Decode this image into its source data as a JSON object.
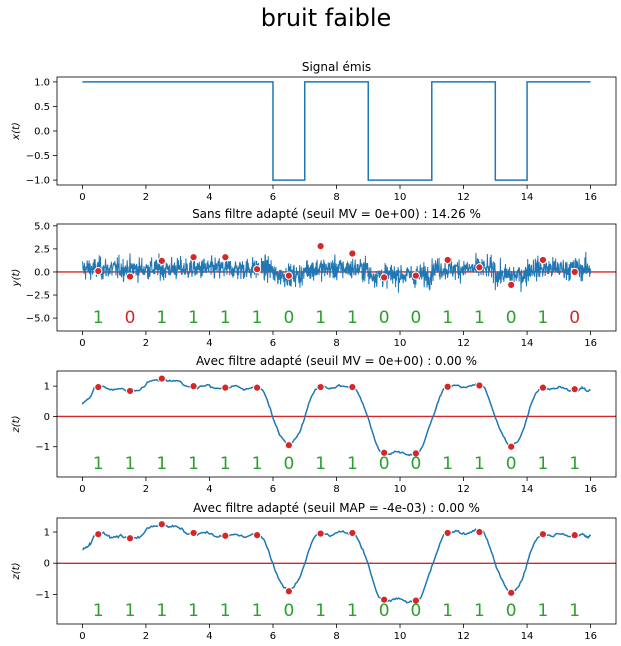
{
  "suptitle": "bruit faible",
  "colors": {
    "signal": "#1f77b4",
    "threshold": "#d62728",
    "sample_fill": "#d62728",
    "bit_ok": "#2ca02c",
    "bit_err": "#d62728"
  },
  "chart_data": [
    {
      "type": "line",
      "title": "Signal émis",
      "ylabel": "x(t)",
      "xlim": [
        -0.8,
        16.8
      ],
      "ylim": [
        -1.1,
        1.1
      ],
      "xticks": [
        "0",
        "2",
        "4",
        "6",
        "8",
        "10",
        "12",
        "14",
        "16"
      ],
      "yticks": [
        "1.0",
        "0.5",
        "0.0",
        "−0.5",
        "−1.0"
      ],
      "ytick_values": [
        1.0,
        0.5,
        0.0,
        -0.5,
        -1.0
      ],
      "bits": [
        1,
        1,
        1,
        1,
        1,
        1,
        0,
        1,
        1,
        0,
        0,
        1,
        1,
        0,
        1,
        1
      ],
      "bit_duration": 1
    },
    {
      "type": "line",
      "title": "Sans filtre adapté (seuil MV = 0e+00) : 14.26 %",
      "ylabel": "y(t)",
      "xlim": [
        -0.8,
        16.8
      ],
      "ylim": [
        -6.4,
        5.2
      ],
      "xticks": [
        "0",
        "2",
        "4",
        "6",
        "8",
        "10",
        "12",
        "14",
        "16"
      ],
      "yticks": [
        "5.0",
        "2.5",
        "0.0",
        "−2.5",
        "−5.0"
      ],
      "ytick_values": [
        5.0,
        2.5,
        0.0,
        -2.5,
        -5.0
      ],
      "threshold": 0,
      "samples_x": [
        0.5,
        1.5,
        2.5,
        3.5,
        4.5,
        5.5,
        6.5,
        7.5,
        8.5,
        9.5,
        10.5,
        11.5,
        12.5,
        13.5,
        14.5,
        15.5
      ],
      "samples_y": [
        0.1,
        -0.5,
        1.2,
        1.6,
        1.6,
        0.3,
        -0.4,
        2.8,
        2.0,
        -0.6,
        -0.4,
        1.3,
        0.5,
        -1.4,
        1.3,
        0.0
      ],
      "decoded_bits": [
        "1",
        "0",
        "1",
        "1",
        "1",
        "1",
        "0",
        "1",
        "1",
        "0",
        "0",
        "1",
        "1",
        "0",
        "1",
        "0"
      ],
      "bit_errors": [
        false,
        true,
        false,
        false,
        false,
        false,
        false,
        false,
        false,
        false,
        false,
        false,
        false,
        false,
        false,
        true
      ]
    },
    {
      "type": "line",
      "title": "Avec filtre adapté (seuil MV = 0e+00) : 0.00 %",
      "ylabel": "z(t)",
      "xlim": [
        -0.8,
        16.8
      ],
      "ylim": [
        -2.0,
        1.5
      ],
      "xticks": [
        "0",
        "2",
        "4",
        "6",
        "8",
        "10",
        "12",
        "14",
        "16"
      ],
      "yticks": [
        "1",
        "0",
        "−1"
      ],
      "ytick_values": [
        1,
        0,
        -1
      ],
      "threshold": 0,
      "samples_x": [
        0.5,
        1.5,
        2.5,
        3.5,
        4.5,
        5.5,
        6.5,
        7.5,
        8.5,
        9.5,
        10.5,
        11.5,
        12.5,
        13.5,
        14.5,
        15.5
      ],
      "samples_y": [
        0.97,
        0.84,
        1.25,
        1.0,
        0.95,
        0.95,
        -0.95,
        0.97,
        0.97,
        -1.2,
        -1.22,
        0.98,
        1.02,
        -1.0,
        0.95,
        0.9
      ],
      "decoded_bits": [
        "1",
        "1",
        "1",
        "1",
        "1",
        "1",
        "0",
        "1",
        "1",
        "0",
        "0",
        "1",
        "1",
        "0",
        "1",
        "1"
      ],
      "bit_errors": [
        false,
        false,
        false,
        false,
        false,
        false,
        false,
        false,
        false,
        false,
        false,
        false,
        false,
        false,
        false,
        false
      ]
    },
    {
      "type": "line",
      "title": "Avec filtre adapté (seuil MAP = -4e-03) : 0.00 %",
      "ylabel": "z(t)",
      "xlim": [
        -0.8,
        16.8
      ],
      "ylim": [
        -1.95,
        1.45
      ],
      "xticks": [
        "0",
        "2",
        "4",
        "6",
        "8",
        "10",
        "12",
        "14",
        "16"
      ],
      "yticks": [
        "1",
        "0",
        "−1"
      ],
      "ytick_values": [
        1,
        0,
        -1
      ],
      "threshold": -0.004,
      "samples_x": [
        0.5,
        1.5,
        2.5,
        3.5,
        4.5,
        5.5,
        6.5,
        7.5,
        8.5,
        9.5,
        10.5,
        11.5,
        12.5,
        13.5,
        14.5,
        15.5
      ],
      "samples_y": [
        0.93,
        0.8,
        1.25,
        0.97,
        0.88,
        0.9,
        -0.9,
        0.95,
        0.97,
        -1.17,
        -1.2,
        0.97,
        1.0,
        -0.95,
        0.93,
        0.9
      ],
      "decoded_bits": [
        "1",
        "1",
        "1",
        "1",
        "1",
        "1",
        "0",
        "1",
        "1",
        "0",
        "0",
        "1",
        "1",
        "0",
        "1",
        "1"
      ],
      "bit_errors": [
        false,
        false,
        false,
        false,
        false,
        false,
        false,
        false,
        false,
        false,
        false,
        false,
        false,
        false,
        false,
        false
      ]
    }
  ]
}
